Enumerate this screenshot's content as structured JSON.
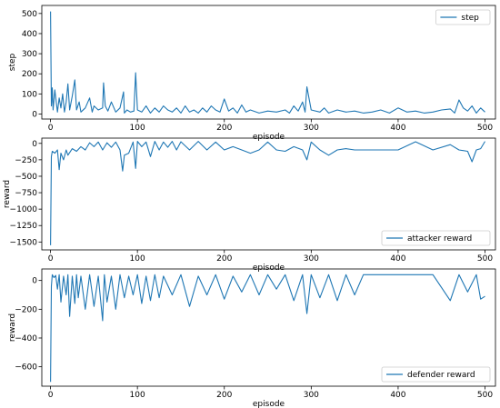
{
  "chart_data": [
    {
      "type": "line",
      "xlabel": "episode",
      "ylabel": "step",
      "xlim": [
        -10,
        512
      ],
      "ylim": [
        -25,
        540
      ],
      "xticks": [
        0,
        100,
        200,
        300,
        400,
        500
      ],
      "yticks": [
        0,
        100,
        200,
        300,
        400,
        500
      ],
      "ytick_labels": [
        "0",
        "100",
        "200",
        "300",
        "400",
        "500"
      ],
      "legend_position": "top-right",
      "series": [
        {
          "name": "step",
          "color": "#1f77b4",
          "x": [
            0,
            1,
            2,
            3,
            5,
            8,
            10,
            12,
            14,
            16,
            18,
            20,
            22,
            25,
            28,
            30,
            33,
            35,
            40,
            45,
            48,
            50,
            55,
            60,
            61,
            63,
            66,
            70,
            75,
            80,
            84,
            85,
            88,
            92,
            96,
            98,
            100,
            105,
            110,
            115,
            120,
            125,
            130,
            135,
            140,
            145,
            150,
            155,
            160,
            165,
            170,
            175,
            180,
            185,
            190,
            195,
            200,
            205,
            210,
            215,
            220,
            225,
            230,
            240,
            250,
            260,
            270,
            275,
            280,
            285,
            290,
            293,
            295,
            300,
            310,
            315,
            320,
            330,
            340,
            350,
            360,
            370,
            380,
            390,
            400,
            410,
            420,
            430,
            440,
            450,
            460,
            465,
            470,
            475,
            480,
            485,
            490,
            495,
            500
          ],
          "y": [
            510,
            40,
            130,
            20,
            120,
            10,
            80,
            30,
            100,
            10,
            60,
            150,
            20,
            90,
            170,
            20,
            60,
            10,
            30,
            80,
            10,
            40,
            20,
            30,
            155,
            40,
            15,
            60,
            10,
            30,
            110,
            5,
            20,
            10,
            15,
            205,
            20,
            10,
            40,
            5,
            30,
            10,
            40,
            20,
            10,
            30,
            5,
            40,
            10,
            20,
            5,
            30,
            10,
            40,
            20,
            10,
            75,
            15,
            30,
            5,
            45,
            10,
            20,
            5,
            15,
            10,
            20,
            5,
            40,
            15,
            60,
            10,
            135,
            20,
            10,
            30,
            5,
            20,
            10,
            15,
            5,
            10,
            20,
            5,
            30,
            10,
            15,
            5,
            10,
            20,
            25,
            5,
            70,
            30,
            15,
            40,
            5,
            30,
            10
          ]
        }
      ]
    },
    {
      "type": "line",
      "xlabel": "episode",
      "ylabel": "reward",
      "xlim": [
        -10,
        512
      ],
      "ylim": [
        -1620,
        80
      ],
      "xticks": [
        0,
        100,
        200,
        300,
        400,
        500
      ],
      "yticks": [
        0,
        -250,
        -500,
        -750,
        -1000,
        -1250,
        -1500
      ],
      "ytick_labels": [
        "0",
        "−250",
        "−500",
        "−750",
        "−1000",
        "−1250",
        "−1500"
      ],
      "legend_position": "bottom-right",
      "series": [
        {
          "name": "attacker reward",
          "color": "#1f77b4",
          "x": [
            0,
            1,
            2,
            5,
            8,
            10,
            12,
            15,
            18,
            20,
            25,
            30,
            35,
            40,
            45,
            50,
            55,
            60,
            65,
            70,
            75,
            80,
            83,
            85,
            90,
            95,
            98,
            100,
            105,
            110,
            115,
            120,
            125,
            130,
            135,
            140,
            145,
            150,
            160,
            170,
            180,
            190,
            200,
            210,
            220,
            230,
            240,
            250,
            260,
            270,
            280,
            290,
            295,
            300,
            310,
            320,
            330,
            340,
            350,
            360,
            380,
            400,
            420,
            440,
            460,
            470,
            480,
            485,
            490,
            495,
            500
          ],
          "y": [
            -1550,
            -200,
            -120,
            -150,
            -100,
            -400,
            -150,
            -250,
            -100,
            -180,
            -80,
            -120,
            -50,
            -100,
            10,
            -50,
            20,
            -100,
            10,
            -60,
            20,
            -100,
            -420,
            -180,
            -150,
            20,
            -380,
            30,
            -50,
            20,
            -200,
            30,
            -100,
            20,
            -60,
            30,
            -100,
            25,
            -100,
            30,
            -100,
            20,
            -100,
            -50,
            -100,
            -150,
            -100,
            20,
            -100,
            -120,
            -50,
            -100,
            -250,
            20,
            -100,
            -180,
            -100,
            -80,
            -100,
            -100,
            -100,
            -100,
            25,
            -100,
            -20,
            -100,
            -120,
            -280,
            -100,
            -80,
            30
          ]
        }
      ]
    },
    {
      "type": "line",
      "xlabel": "episode",
      "ylabel": "reward",
      "xlim": [
        -10,
        512
      ],
      "ylim": [
        -735,
        80
      ],
      "xticks": [
        0,
        100,
        200,
        300,
        400,
        500
      ],
      "yticks": [
        0,
        -200,
        -400,
        -600
      ],
      "ytick_labels": [
        "0",
        "−200",
        "−400",
        "−600"
      ],
      "legend_position": "bottom-right",
      "series": [
        {
          "name": "defender reward",
          "color": "#1f77b4",
          "x": [
            0,
            1,
            2,
            4,
            6,
            8,
            10,
            12,
            15,
            18,
            20,
            22,
            25,
            28,
            30,
            32,
            35,
            40,
            45,
            50,
            55,
            60,
            62,
            65,
            70,
            75,
            80,
            85,
            90,
            95,
            100,
            105,
            110,
            115,
            120,
            125,
            130,
            140,
            150,
            160,
            170,
            180,
            190,
            200,
            210,
            220,
            230,
            240,
            250,
            260,
            270,
            280,
            290,
            295,
            300,
            310,
            320,
            330,
            340,
            350,
            360,
            380,
            400,
            420,
            440,
            460,
            470,
            480,
            490,
            495,
            500
          ],
          "y": [
            -705,
            -40,
            40,
            20,
            35,
            -60,
            40,
            -150,
            30,
            -100,
            40,
            -250,
            30,
            -160,
            40,
            -120,
            30,
            -200,
            40,
            -180,
            30,
            -280,
            40,
            -150,
            30,
            -200,
            40,
            -120,
            30,
            -100,
            40,
            -160,
            30,
            -140,
            40,
            -120,
            30,
            -100,
            40,
            -180,
            30,
            -100,
            40,
            -130,
            30,
            -80,
            40,
            -100,
            40,
            -60,
            40,
            -140,
            40,
            -230,
            40,
            -120,
            40,
            -140,
            40,
            -100,
            40,
            40,
            40,
            40,
            40,
            -140,
            40,
            -80,
            40,
            -130,
            -110
          ]
        }
      ]
    }
  ]
}
